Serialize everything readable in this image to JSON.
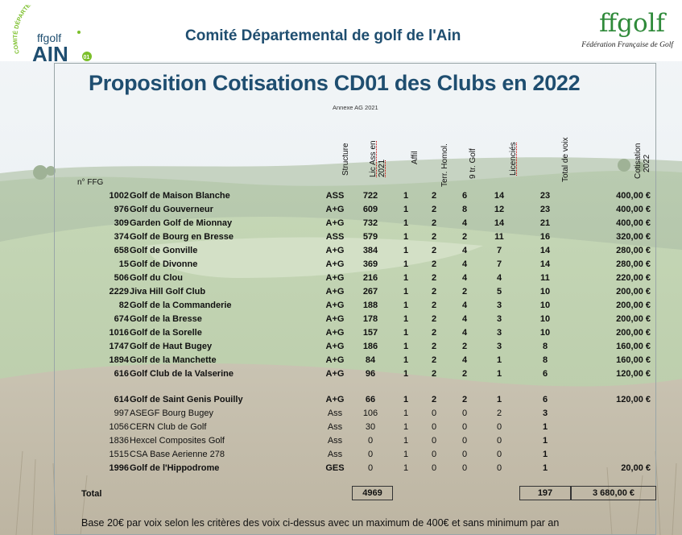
{
  "header": {
    "title": "Comité Départemental de golf de l'Ain",
    "logo_left": {
      "arc_text": "COMITÉ DÉPARTEMENTAL DE GOLF",
      "brand": "ffgolf",
      "name": "AIN",
      "number": "01"
    },
    "logo_right": {
      "brand": "ffgolf",
      "subtitle": "Fédération Française de Golf"
    }
  },
  "document": {
    "title": "Proposition Cotisations CD01 des Clubs en 2022",
    "annexe": "Annexe AG 2021"
  },
  "table": {
    "headers": {
      "ffg": "n° FFG",
      "structure": "Structure",
      "lic_ass": [
        "Lic Ass en",
        "2021"
      ],
      "affil": "Affil",
      "terr_homol": "Terr. Homol.",
      "tr_golf": "9 tr. Golf",
      "licencies": "Licenciés",
      "total_voix": "Total de voix",
      "cotisation": [
        "Cotisation",
        "2022"
      ]
    },
    "rows": [
      {
        "ffg": "1002",
        "club": "Golf de Maison Blanche",
        "structure": "ASS",
        "lic": "722",
        "affil": "1",
        "terr": "2",
        "tr": "6",
        "licencies": "14",
        "voix": "23",
        "cotisation": "400,00 €"
      },
      {
        "ffg": "976",
        "club": "Golf du Gouverneur",
        "structure": "A+G",
        "lic": "609",
        "affil": "1",
        "terr": "2",
        "tr": "8",
        "licencies": "12",
        "voix": "23",
        "cotisation": "400,00 €"
      },
      {
        "ffg": "309",
        "club": "Garden Golf de Mionnay",
        "structure": "A+G",
        "lic": "732",
        "affil": "1",
        "terr": "2",
        "tr": "4",
        "licencies": "14",
        "voix": "21",
        "cotisation": "400,00 €"
      },
      {
        "ffg": "374",
        "club": "Golf de Bourg en Bresse",
        "structure": "ASS",
        "lic": "579",
        "affil": "1",
        "terr": "2",
        "tr": "2",
        "licencies": "11",
        "voix": "16",
        "cotisation": "320,00 €"
      },
      {
        "ffg": "658",
        "club": "Golf de Gonville",
        "structure": "A+G",
        "lic": "384",
        "affil": "1",
        "terr": "2",
        "tr": "4",
        "licencies": "7",
        "voix": "14",
        "cotisation": "280,00 €"
      },
      {
        "ffg": "15",
        "club": "Golf de Divonne",
        "structure": "A+G",
        "lic": "369",
        "affil": "1",
        "terr": "2",
        "tr": "4",
        "licencies": "7",
        "voix": "14",
        "cotisation": "280,00 €"
      },
      {
        "ffg": "506",
        "club": "Golf du Clou",
        "structure": "A+G",
        "lic": "216",
        "affil": "1",
        "terr": "2",
        "tr": "4",
        "licencies": "4",
        "voix": "11",
        "cotisation": "220,00 €"
      },
      {
        "ffg": "2229",
        "club": "Jiva Hill Golf Club",
        "structure": "A+G",
        "lic": "267",
        "affil": "1",
        "terr": "2",
        "tr": "2",
        "licencies": "5",
        "voix": "10",
        "cotisation": "200,00 €"
      },
      {
        "ffg": "82",
        "club": "Golf de la Commanderie",
        "structure": "A+G",
        "lic": "188",
        "affil": "1",
        "terr": "2",
        "tr": "4",
        "licencies": "3",
        "voix": "10",
        "cotisation": "200,00 €"
      },
      {
        "ffg": "674",
        "club": "Golf de la Bresse",
        "structure": "A+G",
        "lic": "178",
        "affil": "1",
        "terr": "2",
        "tr": "4",
        "licencies": "3",
        "voix": "10",
        "cotisation": "200,00 €"
      },
      {
        "ffg": "1016",
        "club": "Golf de la Sorelle",
        "structure": "A+G",
        "lic": "157",
        "affil": "1",
        "terr": "2",
        "tr": "4",
        "licencies": "3",
        "voix": "10",
        "cotisation": "200,00 €"
      },
      {
        "ffg": "1747",
        "club": "Golf de Haut Bugey",
        "structure": "A+G",
        "lic": "186",
        "affil": "1",
        "terr": "2",
        "tr": "2",
        "licencies": "3",
        "voix": "8",
        "cotisation": "160,00 €"
      },
      {
        "ffg": "1894",
        "club": "Golf de la Manchette",
        "structure": "A+G",
        "lic": "84",
        "affil": "1",
        "terr": "2",
        "tr": "4",
        "licencies": "1",
        "voix": "8",
        "cotisation": "160,00 €"
      },
      {
        "ffg": "616",
        "club": "Golf Club de la Valserine",
        "structure": "A+G",
        "lic": "96",
        "affil": "1",
        "terr": "2",
        "tr": "2",
        "licencies": "1",
        "voix": "6",
        "cotisation": "120,00 €"
      },
      {
        "ffg": "614",
        "club": "Golf de Saint Genis Pouilly",
        "structure": "A+G",
        "lic": "66",
        "affil": "1",
        "terr": "2",
        "tr": "2",
        "licencies": "1",
        "voix": "6",
        "cotisation": "120,00 €"
      },
      {
        "ffg": "997",
        "club": "ASEGF Bourg Bugey",
        "structure": "Ass",
        "lic": "106",
        "affil": "1",
        "terr": "0",
        "tr": "0",
        "licencies": "2",
        "voix": "3",
        "cotisation": ""
      },
      {
        "ffg": "1056",
        "club": "CERN Club de Golf",
        "structure": "Ass",
        "lic": "30",
        "affil": "1",
        "terr": "0",
        "tr": "0",
        "licencies": "0",
        "voix": "1",
        "cotisation": ""
      },
      {
        "ffg": "1836",
        "club": "Hexcel Composites Golf",
        "structure": "Ass",
        "lic": "0",
        "affil": "1",
        "terr": "0",
        "tr": "0",
        "licencies": "0",
        "voix": "1",
        "cotisation": ""
      },
      {
        "ffg": "1515",
        "club": "CSA Base Aerienne 278",
        "structure": "Ass",
        "lic": "0",
        "affil": "1",
        "terr": "0",
        "tr": "0",
        "licencies": "0",
        "voix": "1",
        "cotisation": ""
      },
      {
        "ffg": "1996",
        "club": "Golf de l'Hippodrome",
        "structure": "GES",
        "lic": "0",
        "affil": "1",
        "terr": "0",
        "tr": "0",
        "licencies": "0",
        "voix": "1",
        "cotisation": "20,00 €"
      }
    ],
    "total": {
      "label": "Total",
      "lic": "4969",
      "voix": "197",
      "cotisation": "3 680,00 €"
    }
  },
  "footer": {
    "note": "Base 20€ par voix selon les critères des voix ci-dessus avec un maximum de 400€ et sans minimum par an"
  }
}
